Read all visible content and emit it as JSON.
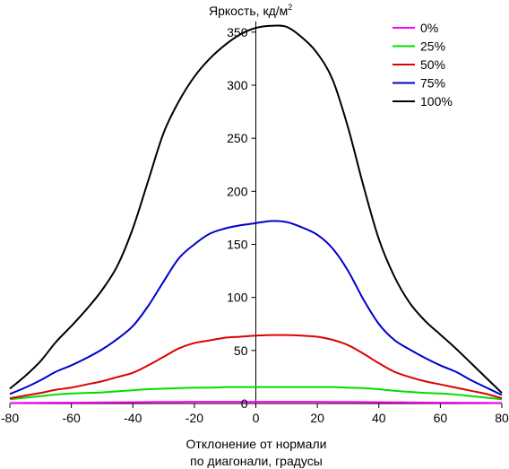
{
  "chart_data": {
    "type": "line",
    "y_title": "Яркость, кд/м",
    "y_title_sup": "2",
    "x_title_line1": "Отклонение от нормали",
    "x_title_line2": "по диагонали, градусы",
    "xlim": [
      -80,
      80
    ],
    "ylim": [
      0,
      360
    ],
    "x_ticks": [
      -80,
      -60,
      -40,
      -20,
      0,
      20,
      40,
      60,
      80
    ],
    "y_ticks": [
      0,
      50,
      100,
      150,
      200,
      250,
      300,
      350
    ],
    "x": [
      -80,
      -75,
      -70,
      -65,
      -60,
      -55,
      -50,
      -45,
      -40,
      -35,
      -30,
      -25,
      -20,
      -15,
      -10,
      -5,
      0,
      5,
      10,
      15,
      20,
      25,
      30,
      35,
      40,
      45,
      50,
      55,
      60,
      65,
      70,
      75,
      80
    ],
    "legend_position": "top-right",
    "series": [
      {
        "name": "0%",
        "color": "#ff00ff",
        "values": [
          0.5,
          0.6,
          0.7,
          0.8,
          0.9,
          1.0,
          1.1,
          1.2,
          1.3,
          1.4,
          1.5,
          1.5,
          1.6,
          1.6,
          1.6,
          1.6,
          1.6,
          1.6,
          1.6,
          1.6,
          1.6,
          1.5,
          1.5,
          1.4,
          1.3,
          1.2,
          1.1,
          1.0,
          0.9,
          0.8,
          0.7,
          0.6,
          0.5
        ]
      },
      {
        "name": "25%",
        "color": "#00dd00",
        "values": [
          4,
          5.5,
          7,
          8.5,
          9.5,
          10,
          10.5,
          11.5,
          12.5,
          13.5,
          14,
          14.5,
          15,
          15,
          15.5,
          15.5,
          15.5,
          15.5,
          15.5,
          15.5,
          15.5,
          15.5,
          15,
          14.5,
          13.5,
          12,
          11,
          10,
          9.5,
          8.5,
          7,
          5.5,
          4
        ]
      },
      {
        "name": "50%",
        "color": "#dd0000",
        "values": [
          5,
          7.5,
          10,
          13,
          15,
          18,
          21,
          25,
          29,
          36,
          44,
          52,
          57,
          59.5,
          62,
          63,
          64,
          64.5,
          64.5,
          64,
          63,
          60,
          55,
          47,
          38,
          30,
          25,
          21,
          18,
          15,
          12,
          9,
          5
        ]
      },
      {
        "name": "75%",
        "color": "#0000cc",
        "values": [
          9,
          15,
          22,
          30,
          36,
          43,
          51,
          61,
          73,
          92,
          115,
          137,
          150,
          160,
          165,
          168,
          170,
          172,
          171,
          166,
          159,
          146,
          125,
          98,
          75,
          60,
          51,
          43,
          36,
          30,
          22,
          15,
          8
        ]
      },
      {
        "name": "100%",
        "color": "#000000",
        "values": [
          14,
          26,
          40,
          58,
          73,
          89,
          107,
          130,
          165,
          210,
          255,
          285,
          308,
          325,
          338,
          348,
          354,
          356,
          355,
          345,
          330,
          305,
          260,
          205,
          155,
          120,
          95,
          78,
          65,
          52,
          38,
          24,
          10
        ]
      }
    ]
  }
}
